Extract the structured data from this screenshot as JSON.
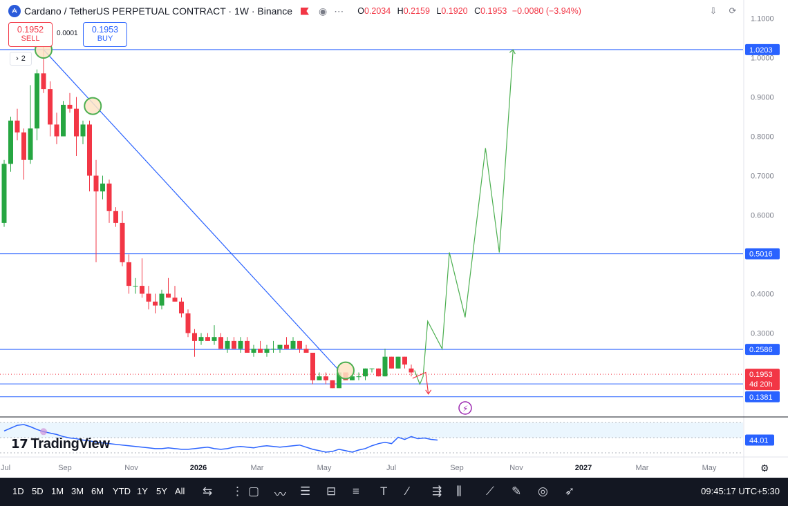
{
  "header": {
    "title": "Cardano / TetherUS PERPETUAL CONTRACT · 1W · Binance",
    "coin_icon": "cardano-logo-icon",
    "flag_icon": "flag-icon",
    "eye_icon": "eye-icon",
    "more_icon": "dots-icon",
    "ohlc": {
      "o_label": "O",
      "o": "0.2034",
      "h_label": "H",
      "h": "0.2159",
      "l_label": "L",
      "l": "0.1920",
      "c_label": "C",
      "c": "0.1953",
      "change": "−0.0080 (−3.94%)"
    }
  },
  "trade": {
    "sell_price": "0.1952",
    "sell_label": "SELL",
    "spread": "0.0001",
    "buy_price": "0.1953",
    "buy_label": "BUY"
  },
  "indicator_toggle": "2",
  "brand": "TradingView",
  "colors": {
    "up": "#26a641",
    "down": "#f23645",
    "line": "#2962ff",
    "projection": "#4caf50",
    "accent": "#2962ff"
  },
  "chart_data": {
    "type": "candlestick",
    "timeframe": "1W",
    "x_ticks": [
      "Jul",
      "Sep",
      "Nov",
      "2026",
      "Mar",
      "May",
      "Jul",
      "Sep",
      "Nov",
      "2027",
      "Mar",
      "May"
    ],
    "y_ticks": [
      "1.1000",
      "1.0000",
      "0.9000",
      "0.8000",
      "0.7000",
      "0.6000",
      "0.5000",
      "0.4000",
      "0.3000",
      "0.2000"
    ],
    "ylim": [
      0.13,
      1.13
    ],
    "candles": [
      [
        0.58,
        0.74,
        0.57,
        0.73
      ],
      [
        0.73,
        0.85,
        0.71,
        0.84
      ],
      [
        0.84,
        0.87,
        0.79,
        0.81
      ],
      [
        0.81,
        0.82,
        0.69,
        0.74
      ],
      [
        0.74,
        0.93,
        0.73,
        0.82
      ],
      [
        0.82,
        0.97,
        0.79,
        0.96
      ],
      [
        0.96,
        1.03,
        0.91,
        0.92
      ],
      [
        0.92,
        0.94,
        0.8,
        0.83
      ],
      [
        0.83,
        0.86,
        0.78,
        0.8
      ],
      [
        0.8,
        0.89,
        0.8,
        0.88
      ],
      [
        0.88,
        0.91,
        0.86,
        0.87
      ],
      [
        0.87,
        0.9,
        0.75,
        0.8
      ],
      [
        0.8,
        0.84,
        0.78,
        0.83
      ],
      [
        0.83,
        0.84,
        0.66,
        0.7
      ],
      [
        0.7,
        0.74,
        0.48,
        0.66
      ],
      [
        0.66,
        0.7,
        0.64,
        0.68
      ],
      [
        0.68,
        0.69,
        0.58,
        0.61
      ],
      [
        0.61,
        0.62,
        0.57,
        0.58
      ],
      [
        0.58,
        0.61,
        0.47,
        0.48
      ],
      [
        0.48,
        0.5,
        0.4,
        0.42
      ],
      [
        0.42,
        0.44,
        0.4,
        0.42
      ],
      [
        0.42,
        0.49,
        0.39,
        0.4
      ],
      [
        0.4,
        0.42,
        0.36,
        0.38
      ],
      [
        0.38,
        0.4,
        0.35,
        0.37
      ],
      [
        0.37,
        0.41,
        0.36,
        0.4
      ],
      [
        0.4,
        0.44,
        0.39,
        0.39
      ],
      [
        0.39,
        0.42,
        0.38,
        0.38
      ],
      [
        0.38,
        0.39,
        0.34,
        0.35
      ],
      [
        0.35,
        0.36,
        0.29,
        0.3
      ],
      [
        0.3,
        0.31,
        0.24,
        0.28
      ],
      [
        0.28,
        0.3,
        0.27,
        0.29
      ],
      [
        0.29,
        0.3,
        0.28,
        0.28
      ],
      [
        0.28,
        0.32,
        0.27,
        0.29
      ],
      [
        0.29,
        0.3,
        0.26,
        0.26
      ],
      [
        0.26,
        0.29,
        0.25,
        0.28
      ],
      [
        0.28,
        0.29,
        0.26,
        0.26
      ],
      [
        0.26,
        0.29,
        0.25,
        0.28
      ],
      [
        0.28,
        0.29,
        0.25,
        0.25
      ],
      [
        0.25,
        0.27,
        0.24,
        0.26
      ],
      [
        0.26,
        0.28,
        0.25,
        0.25
      ],
      [
        0.25,
        0.27,
        0.24,
        0.26
      ],
      [
        0.26,
        0.28,
        0.25,
        0.26
      ],
      [
        0.26,
        0.27,
        0.25,
        0.27
      ],
      [
        0.27,
        0.29,
        0.26,
        0.26
      ],
      [
        0.26,
        0.29,
        0.26,
        0.28
      ],
      [
        0.28,
        0.28,
        0.25,
        0.26
      ],
      [
        0.26,
        0.27,
        0.25,
        0.25
      ],
      [
        0.25,
        0.25,
        0.17,
        0.18
      ],
      [
        0.18,
        0.2,
        0.18,
        0.19
      ],
      [
        0.19,
        0.2,
        0.17,
        0.18
      ],
      [
        0.18,
        0.18,
        0.16,
        0.16
      ],
      [
        0.16,
        0.21,
        0.16,
        0.2
      ],
      [
        0.2,
        0.2,
        0.18,
        0.18
      ],
      [
        0.18,
        0.19,
        0.18,
        0.19
      ],
      [
        0.19,
        0.2,
        0.18,
        0.19
      ],
      [
        0.19,
        0.21,
        0.18,
        0.21
      ],
      [
        0.21,
        0.21,
        0.2,
        0.21
      ],
      [
        0.21,
        0.21,
        0.19,
        0.19
      ],
      [
        0.19,
        0.26,
        0.19,
        0.24
      ],
      [
        0.24,
        0.24,
        0.21,
        0.21
      ],
      [
        0.21,
        0.24,
        0.21,
        0.24
      ],
      [
        0.24,
        0.24,
        0.21,
        0.22
      ],
      [
        0.21,
        0.22,
        0.19,
        0.2
      ]
    ],
    "horizontal_levels": [
      {
        "value": 1.0203,
        "label": "1.0203"
      },
      {
        "value": 0.5016,
        "label": "0.5016"
      },
      {
        "value": 0.2586,
        "label": "0.2586"
      },
      {
        "value": 0.1709,
        "label": "0.1709"
      },
      {
        "value": 0.1381,
        "label": "0.1381"
      }
    ],
    "last_price": {
      "value": 0.1953,
      "label": "0.1953",
      "countdown": "4d 20h"
    },
    "trendline": {
      "from": {
        "x": 6,
        "y": 1.0203
      },
      "to": {
        "x": 51,
        "y": 0.205
      }
    },
    "highlight_circles": [
      {
        "x": 6,
        "y": 1.02,
        "fill": "#fde4c6",
        "stroke": "#4caf50"
      },
      {
        "x": 13.5,
        "y": 0.877,
        "fill": "#fde4c6",
        "stroke": "#4caf50"
      },
      {
        "x": 52,
        "y": 0.205,
        "fill": "#fde4c6",
        "stroke": "#4caf50"
      }
    ],
    "projection_path": [
      [
        62.5,
        0.205
      ],
      [
        63.3,
        0.17
      ],
      [
        63.8,
        0.19
      ],
      [
        64.5,
        0.33
      ],
      [
        66.7,
        0.26
      ],
      [
        67.8,
        0.505
      ],
      [
        70.2,
        0.34
      ],
      [
        73.3,
        0.77
      ],
      [
        75.4,
        0.505
      ],
      [
        77.5,
        1.02
      ]
    ],
    "down_arrow_path": [
      [
        62.2,
        0.185
      ],
      [
        64.2,
        0.2
      ],
      [
        64.6,
        0.145
      ]
    ],
    "rsi": {
      "value_label": "44.01",
      "values": [
        58,
        62,
        66,
        67,
        64,
        60,
        57,
        55,
        53,
        50,
        48,
        47,
        45,
        44,
        42,
        41,
        40,
        39,
        38,
        37,
        36,
        35,
        34,
        33,
        33,
        34,
        33,
        32,
        32,
        33,
        34,
        35,
        33,
        32,
        33,
        35,
        36,
        35,
        34,
        36,
        37,
        36,
        35,
        36,
        37,
        38,
        35,
        32,
        30,
        28,
        29,
        32,
        30,
        28,
        31,
        33,
        37,
        40,
        42,
        40,
        49,
        46,
        50,
        47,
        48,
        46,
        45
      ]
    }
  },
  "toolbar": {
    "ranges": [
      "1D",
      "5D",
      "1M",
      "3M",
      "6M",
      "YTD",
      "1Y",
      "5Y",
      "All"
    ],
    "time": "09:45:17 UTC+5:30",
    "tools": [
      "calendar-icon",
      "crosshair-icon",
      "rectangle-icon",
      "pattern-icon",
      "fib-icon",
      "channel-icon",
      "parallel-lines-icon",
      "text-icon",
      "line-icon",
      "forecast-icon",
      "signal-icon",
      "path-icon",
      "brush-icon",
      "eye-icon",
      "arrow-icon"
    ]
  }
}
